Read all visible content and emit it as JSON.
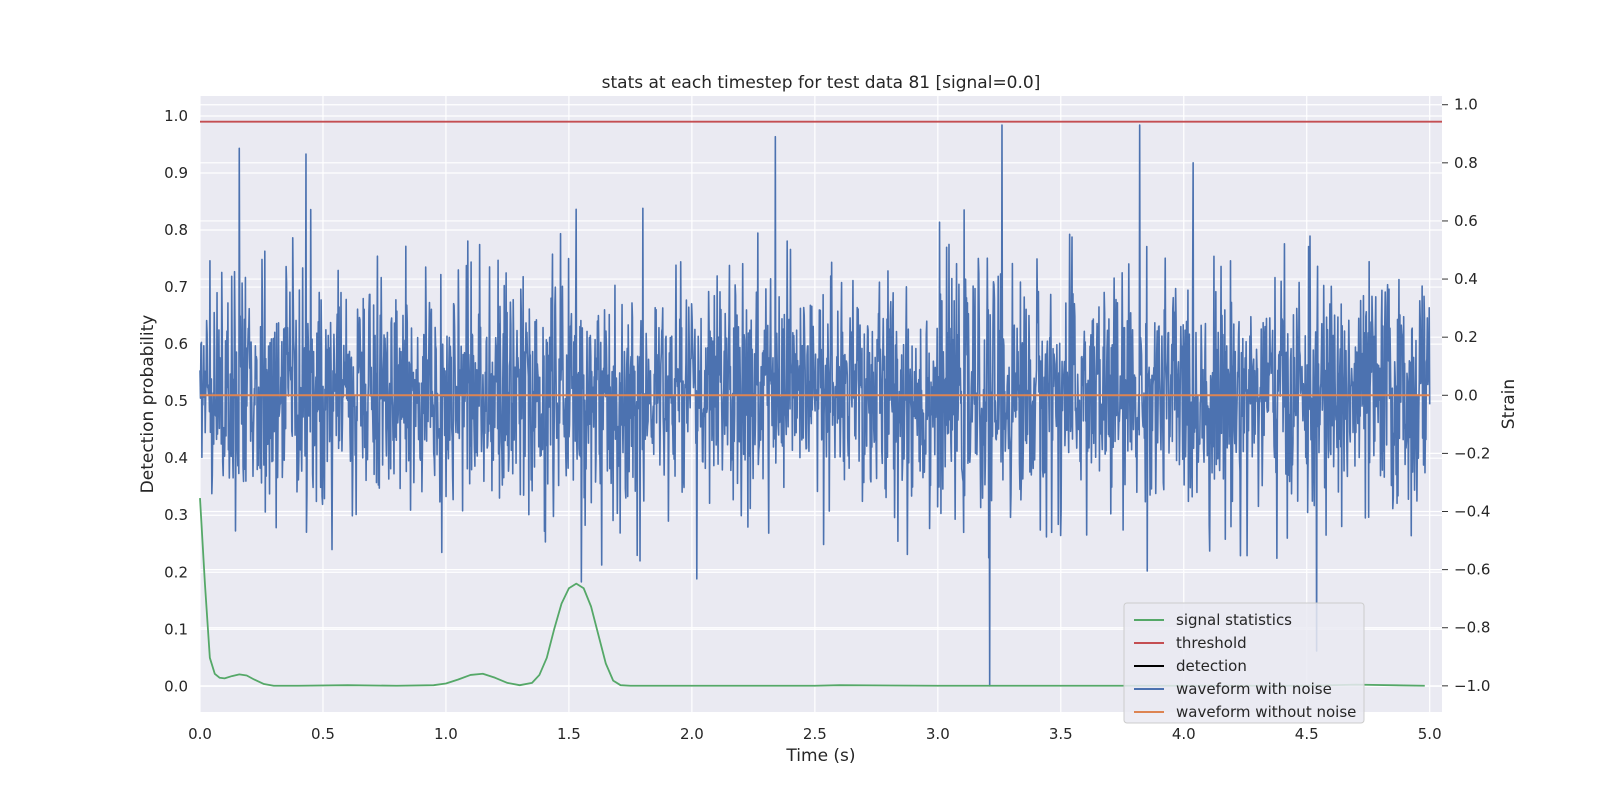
{
  "chart_data": {
    "type": "line",
    "title": "stats at each timestep for test data 81 [signal=0.0]",
    "xlabel": "Time (s)",
    "ylabel": "Detection probability",
    "y2label": "Strain",
    "xlim": [
      0.0,
      5.05
    ],
    "ylim": [
      -0.045,
      1.035
    ],
    "y2lim": [
      -1.09,
      1.03
    ],
    "grid": true,
    "legend_placement": "lower-right",
    "x_ticks": [
      "0.0",
      "0.5",
      "1.0",
      "1.5",
      "2.0",
      "2.5",
      "3.0",
      "3.5",
      "4.0",
      "4.5",
      "5.0"
    ],
    "y_ticks": [
      "0.0",
      "0.1",
      "0.2",
      "0.3",
      "0.4",
      "0.5",
      "0.6",
      "0.7",
      "0.8",
      "0.9",
      "1.0"
    ],
    "y2_ticks": [
      "−1.0",
      "−0.8",
      "−0.6",
      "−0.4",
      "−0.2",
      "0.0",
      "0.2",
      "0.4",
      "0.6",
      "0.8",
      "1.0"
    ],
    "series": [
      {
        "name": "signal statistics",
        "color": "#55a868",
        "axis": "left",
        "x": [
          0.0,
          0.02,
          0.04,
          0.06,
          0.08,
          0.1,
          0.13,
          0.16,
          0.19,
          0.22,
          0.26,
          0.3,
          0.4,
          0.6,
          0.8,
          0.95,
          1.0,
          1.05,
          1.1,
          1.15,
          1.2,
          1.25,
          1.3,
          1.35,
          1.38,
          1.41,
          1.44,
          1.47,
          1.5,
          1.53,
          1.56,
          1.59,
          1.62,
          1.65,
          1.68,
          1.71,
          1.75,
          2.0,
          2.5,
          2.6,
          3.0,
          3.5,
          4.0,
          4.5,
          4.7,
          4.98
        ],
        "y": [
          0.33,
          0.18,
          0.05,
          0.022,
          0.015,
          0.014,
          0.018,
          0.021,
          0.019,
          0.012,
          0.004,
          0.001,
          0.001,
          0.002,
          0.001,
          0.002,
          0.005,
          0.012,
          0.02,
          0.022,
          0.015,
          0.006,
          0.002,
          0.006,
          0.02,
          0.05,
          0.1,
          0.145,
          0.172,
          0.18,
          0.172,
          0.14,
          0.09,
          0.04,
          0.01,
          0.002,
          0.001,
          0.001,
          0.001,
          0.002,
          0.001,
          0.001,
          0.001,
          0.001,
          0.003,
          0.001
        ]
      },
      {
        "name": "threshold",
        "color": "#c44e52",
        "axis": "left",
        "x": [
          0.0,
          5.05
        ],
        "y": [
          0.99,
          0.99
        ]
      },
      {
        "name": "detection",
        "color": "#000000",
        "axis": "left",
        "x": [],
        "y": []
      },
      {
        "name": "waveform with noise",
        "color": "#4c72b0",
        "axis": "right",
        "x_range": [
          0.0,
          5.0
        ],
        "noise_std": 0.2,
        "spikes": [
          {
            "x": 0.16,
            "y": 0.85
          },
          {
            "x": 0.43,
            "y": 0.83
          },
          {
            "x": 2.34,
            "y": 0.89
          },
          {
            "x": 3.21,
            "y": -1.0
          },
          {
            "x": 3.26,
            "y": 0.93
          },
          {
            "x": 3.82,
            "y": 0.93
          },
          {
            "x": 4.54,
            "y": -0.88
          },
          {
            "x": 1.53,
            "y": 0.64
          }
        ]
      },
      {
        "name": "waveform without noise",
        "color": "#dd8452",
        "axis": "right",
        "x": [
          0.0,
          5.0
        ],
        "y": [
          0.0,
          0.0
        ]
      }
    ]
  }
}
